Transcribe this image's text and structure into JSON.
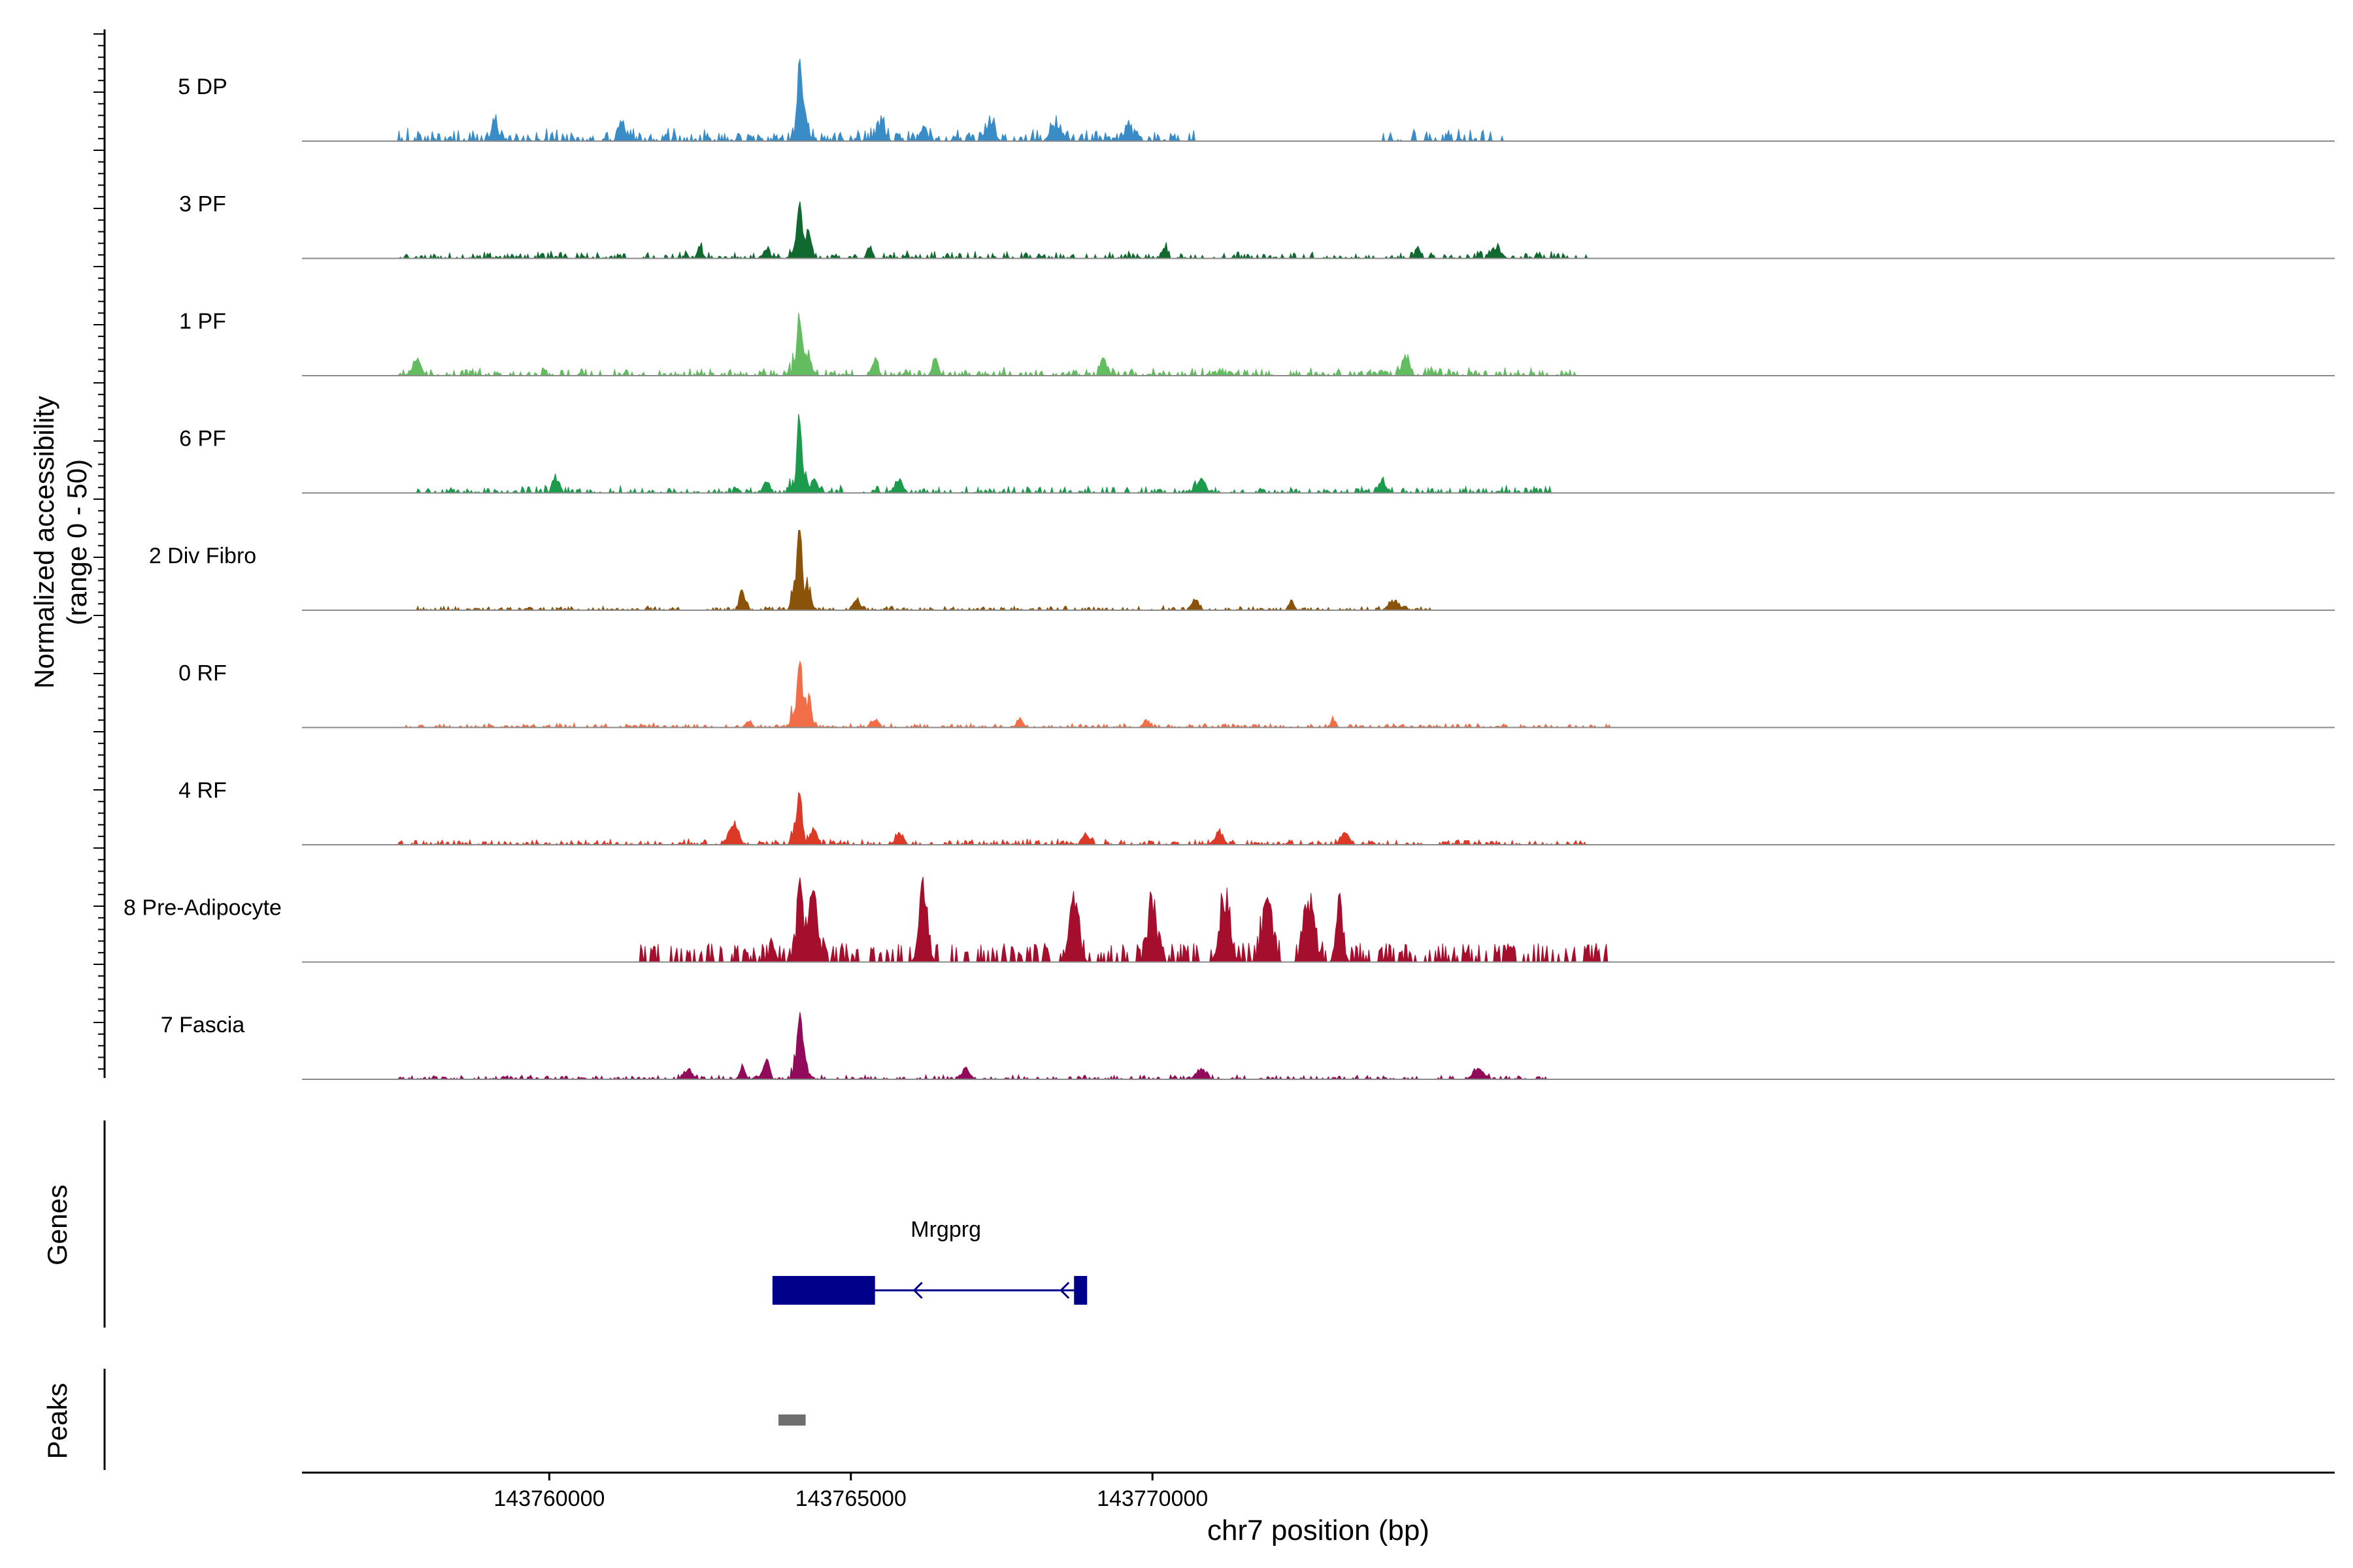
{
  "chart_data": {
    "type": "area",
    "title": "",
    "xlabel": "chr7 position (bp)",
    "ylabel_line1": "Normalized accessibility",
    "ylabel_line2": "(range 0 - 50)",
    "xlim": [
      143755900,
      143789600
    ],
    "ylim": [
      0,
      50
    ],
    "x_ticks": [
      143760000,
      143765000,
      143770000
    ],
    "x_tick_labels": [
      "143760000",
      "143765000",
      "143770000"
    ],
    "grid": false,
    "legend": "none",
    "tracks": [
      {
        "name": "5 DP",
        "color": "#3a8cc7",
        "main_peak": 46,
        "noise": 9,
        "burst_height": 13,
        "ranges": [
          [
            143757500,
            143770700
          ],
          [
            143773800,
            143775800
          ]
        ],
        "bursts": [
          143759100,
          143761200,
          143767300,
          143769600,
          143768400,
          143765500
        ],
        "secondary": [
          [
            143764200,
            12
          ],
          [
            143766200,
            10
          ]
        ]
      },
      {
        "name": "3 PF",
        "color": "#10692f",
        "main_peak": 38,
        "noise": 5,
        "burst_height": 8,
        "ranges": [
          [
            143757500,
            143777200
          ]
        ],
        "bursts": [
          143762500,
          143765300,
          143770200,
          143775700,
          143774400
        ],
        "secondary": [
          [
            143764300,
            13
          ],
          [
            143763600,
            7
          ]
        ]
      },
      {
        "name": "1 PF",
        "color": "#63bc5f",
        "main_peak": 43,
        "noise": 6,
        "burst_height": 12,
        "ranges": [
          [
            143757500,
            143777000
          ]
        ],
        "bursts": [
          143757800,
          143766400,
          143769200,
          143774200
        ],
        "secondary": [
          [
            143764300,
            9
          ],
          [
            143765400,
            10
          ]
        ]
      },
      {
        "name": "6 PF",
        "color": "#1c9b4c",
        "main_peak": 57,
        "noise": 5,
        "burst_height": 10,
        "ranges": [
          [
            143757800,
            143776600
          ]
        ],
        "bursts": [
          143760100,
          143765800,
          143770800,
          143773800
        ],
        "secondary": [
          [
            143764400,
            10
          ],
          [
            143763600,
            9
          ]
        ]
      },
      {
        "name": "2 Div Fibro",
        "color": "#8b5209",
        "main_peak": 62,
        "noise": 3,
        "burst_height": 7,
        "ranges": [
          [
            143757800,
            143774600
          ]
        ],
        "bursts": [
          143765100,
          143772300,
          143770700,
          143774000
        ],
        "secondary": [
          [
            143763200,
            13
          ],
          [
            143764300,
            9
          ]
        ]
      },
      {
        "name": "0 RF",
        "color": "#f26e48",
        "main_peak": 52,
        "noise": 3,
        "burst_height": 6,
        "ranges": [
          [
            143757600,
            143777600
          ]
        ],
        "bursts": [
          143765400,
          143767800,
          143769900,
          143773000
        ],
        "secondary": [
          [
            143764300,
            16
          ],
          [
            143763300,
            4
          ]
        ]
      },
      {
        "name": "4 RF",
        "color": "#dc3a27",
        "main_peak": 36,
        "noise": 4,
        "burst_height": 9,
        "ranges": [
          [
            143757500,
            143777300
          ]
        ],
        "bursts": [
          143763000,
          143765800,
          143771100,
          143773200,
          143768900
        ],
        "secondary": [
          [
            143763100,
            12
          ],
          [
            143764400,
            10
          ]
        ]
      },
      {
        "name": "8 Pre-Adipocyte",
        "color": "#a50f2d",
        "main_peak": 60,
        "noise": 0,
        "burst_height": 46,
        "ranges": [
          [
            143761500,
            143777600
          ]
        ],
        "bursts": [
          143770000,
          143771200,
          143771900,
          143772600,
          143773100,
          143768700,
          143766200,
          143764400
        ],
        "secondary": [
          [
            143763700,
            12
          ],
          [
            143764300,
            18
          ]
        ]
      },
      {
        "name": "7 Fascia",
        "color": "#910b5a",
        "main_peak": 44,
        "noise": 3,
        "burst_height": 8,
        "ranges": [
          [
            143757500,
            143776600
          ]
        ],
        "bursts": [
          143763200,
          143762300,
          143766900,
          143770800,
          143775400
        ],
        "secondary": [
          [
            143763600,
            14
          ],
          [
            143764200,
            9
          ]
        ]
      }
    ],
    "main_peak_position": 143764150,
    "genes": [
      {
        "name": "Mrgprg",
        "strand": "-",
        "exons": [
          [
            143763700,
            143765400
          ],
          [
            143768700,
            143768800
          ]
        ],
        "span": [
          143763700,
          143768800
        ]
      }
    ],
    "peaks": [
      [
        143763800,
        143764250
      ]
    ],
    "genes_label": "Genes",
    "peaks_label": "Peaks"
  }
}
